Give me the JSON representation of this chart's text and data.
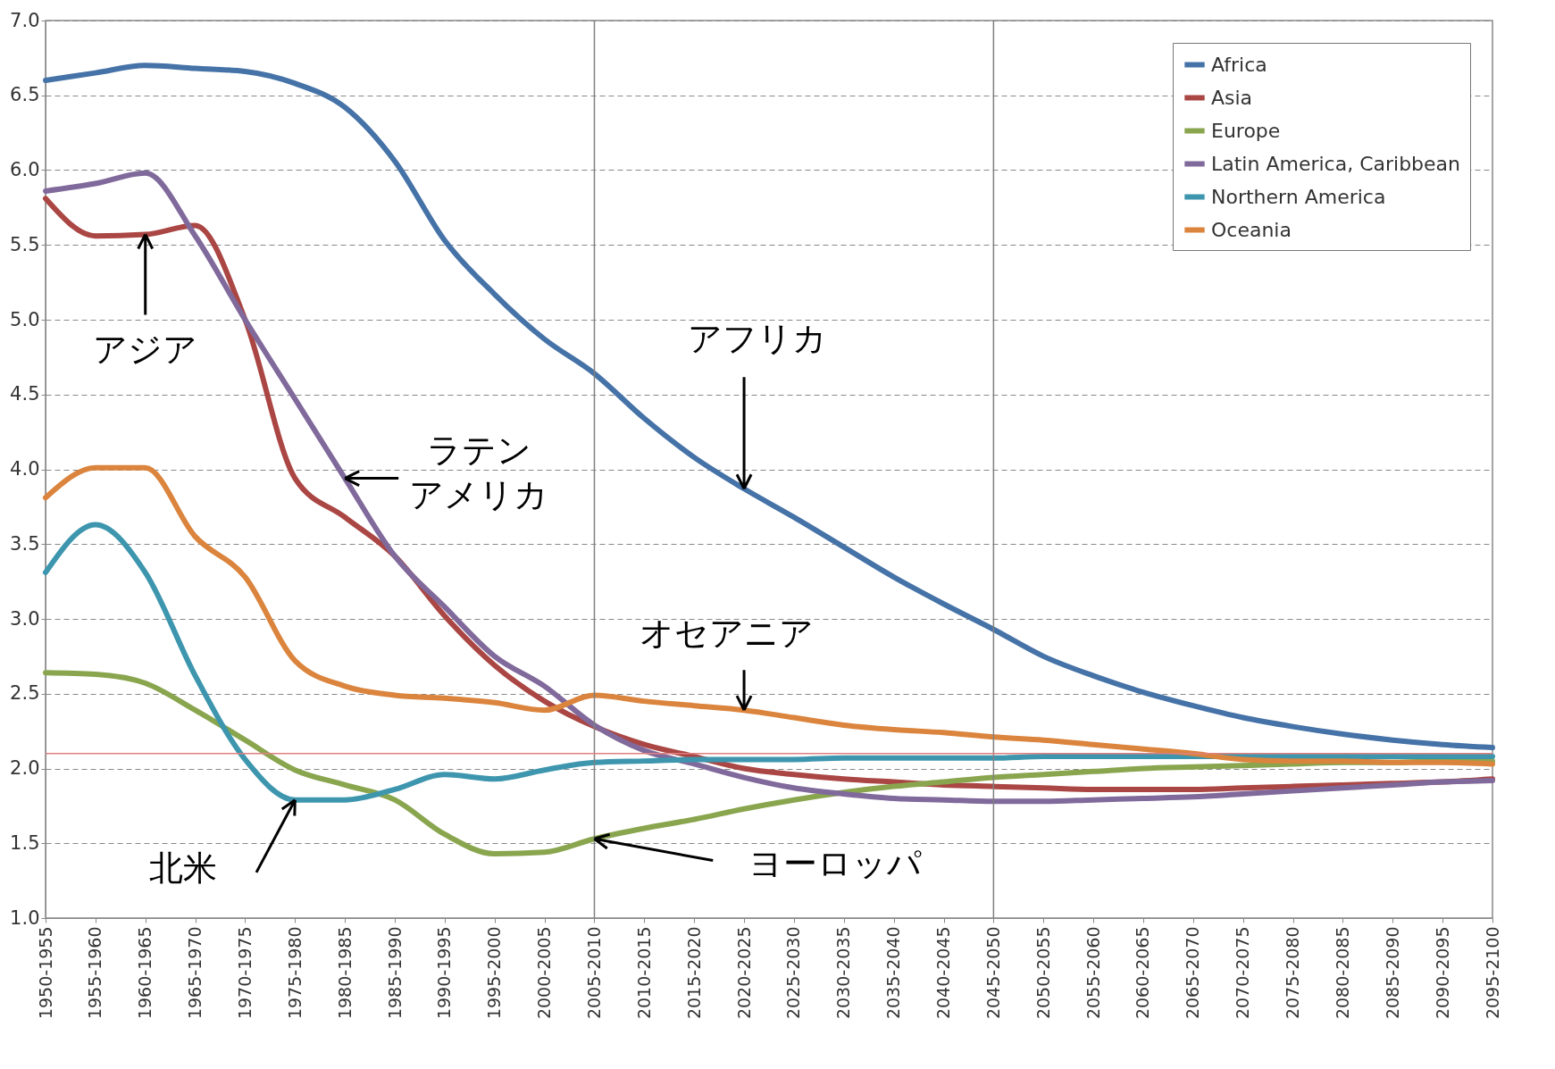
{
  "chart_data": {
    "type": "line",
    "categories": [
      "1950-1955",
      "1955-1960",
      "1960-1965",
      "1965-1970",
      "1970-1975",
      "1975-1980",
      "1980-1985",
      "1985-1990",
      "1990-1995",
      "1995-2000",
      "2000-2005",
      "2005-2010",
      "2010-2015",
      "2015-2020",
      "2020-2025",
      "2025-2030",
      "2030-2035",
      "2035-2040",
      "2040-2045",
      "2045-2050",
      "2050-2055",
      "2055-2060",
      "2060-2065",
      "2065-2070",
      "2070-2075",
      "2075-2080",
      "2080-2085",
      "2085-2090",
      "2090-2095",
      "2095-2100"
    ],
    "series": [
      {
        "name": "Africa",
        "color": "#4572a7",
        "values": [
          6.6,
          6.65,
          6.7,
          6.68,
          6.66,
          6.58,
          6.42,
          6.06,
          5.53,
          5.17,
          4.87,
          4.64,
          4.34,
          4.08,
          3.87,
          3.68,
          3.48,
          3.28,
          3.1,
          2.93,
          2.75,
          2.62,
          2.51,
          2.42,
          2.34,
          2.28,
          2.23,
          2.19,
          2.16,
          2.14
        ]
      },
      {
        "name": "Asia",
        "color": "#aa4643",
        "values": [
          5.81,
          5.56,
          5.57,
          5.63,
          5.0,
          3.94,
          3.68,
          3.42,
          3.02,
          2.69,
          2.45,
          2.28,
          2.16,
          2.08,
          2.0,
          1.96,
          1.93,
          1.91,
          1.89,
          1.88,
          1.87,
          1.86,
          1.86,
          1.86,
          1.87,
          1.88,
          1.89,
          1.9,
          1.91,
          1.93
        ]
      },
      {
        "name": "Europe",
        "color": "#89a54e",
        "values": [
          2.64,
          2.63,
          2.57,
          2.39,
          2.19,
          1.99,
          1.89,
          1.79,
          1.56,
          1.43,
          1.44,
          1.53,
          1.6,
          1.66,
          1.73,
          1.79,
          1.84,
          1.88,
          1.91,
          1.94,
          1.96,
          1.98,
          2.0,
          2.01,
          2.02,
          2.03,
          2.04,
          2.04,
          2.05,
          2.05
        ]
      },
      {
        "name": "Latin America, Caribbean",
        "color": "#80699b",
        "values": [
          5.86,
          5.91,
          5.98,
          5.56,
          5.0,
          4.47,
          3.94,
          3.42,
          3.08,
          2.75,
          2.55,
          2.29,
          2.12,
          2.03,
          1.94,
          1.87,
          1.83,
          1.8,
          1.79,
          1.78,
          1.78,
          1.79,
          1.8,
          1.81,
          1.83,
          1.85,
          1.87,
          1.89,
          1.91,
          1.92
        ]
      },
      {
        "name": "Northern America",
        "color": "#3d96ae",
        "values": [
          3.31,
          3.63,
          3.31,
          2.62,
          2.06,
          1.79,
          1.79,
          1.86,
          1.96,
          1.93,
          1.99,
          2.04,
          2.05,
          2.06,
          2.06,
          2.06,
          2.07,
          2.07,
          2.07,
          2.07,
          2.08,
          2.08,
          2.08,
          2.08,
          2.08,
          2.08,
          2.08,
          2.08,
          2.08,
          2.08
        ]
      },
      {
        "name": "Oceania",
        "color": "#db843d",
        "values": [
          3.81,
          4.01,
          4.01,
          3.55,
          3.28,
          2.72,
          2.55,
          2.49,
          2.47,
          2.44,
          2.39,
          2.49,
          2.45,
          2.42,
          2.39,
          2.34,
          2.29,
          2.26,
          2.24,
          2.21,
          2.19,
          2.16,
          2.13,
          2.1,
          2.06,
          2.05,
          2.05,
          2.04,
          2.04,
          2.03
        ]
      }
    ],
    "ylim": [
      1.0,
      7.0
    ],
    "yticks": [
      {
        "value": 1,
        "label": "1.0"
      },
      1.5,
      {
        "value": 2,
        "label": "2.0"
      },
      2.5,
      {
        "value": 3,
        "label": "3.0"
      },
      3.5,
      {
        "value": 4,
        "label": "4.0"
      },
      4.5,
      {
        "value": 5,
        "label": "5.0"
      },
      5.5,
      {
        "value": 6,
        "label": "6.0"
      },
      6.5,
      {
        "value": 7,
        "label": "7.0"
      }
    ],
    "grid": "y",
    "legend": "top right",
    "ref_lines": [
      {
        "axis": "x",
        "value": "2005-2010",
        "color": "#808080"
      },
      {
        "axis": "x",
        "value": "2045-2050",
        "color": "#808080"
      },
      {
        "axis": "y",
        "value": 2.1,
        "color": "#e08080"
      }
    ],
    "annotations": [
      {
        "text": "アジア",
        "x": "1960-1965",
        "y": 5.57
      },
      {
        "text": "ラテンアメリカ",
        "x": "1980-1985",
        "y": 3.94
      },
      {
        "text": "アフリカ",
        "x": "2020-2025",
        "y": 3.87
      },
      {
        "text": "オセアニア",
        "x": "2020-2025",
        "y": 2.39
      },
      {
        "text": "北米",
        "x": "1975-1980",
        "y": 1.79
      },
      {
        "text": "ヨーロッパ",
        "x": "2005-2010",
        "y": 1.53
      }
    ]
  }
}
